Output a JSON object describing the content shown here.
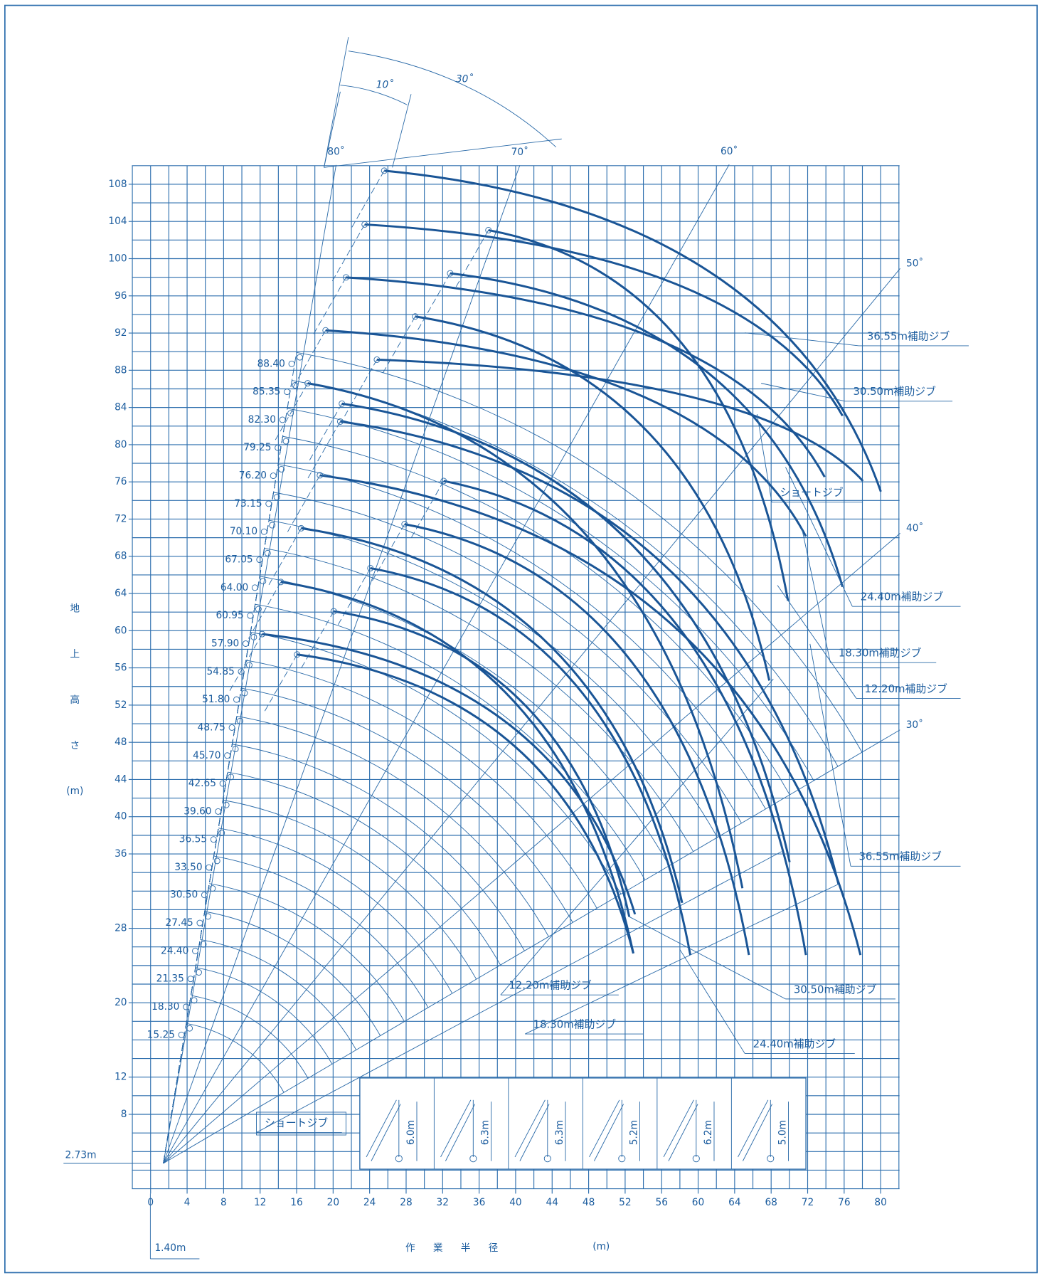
{
  "diagram": {
    "y_axis_title": [
      "地",
      "上",
      "高",
      "さ",
      "(m)"
    ],
    "x_axis_title": "作業半径",
    "x_axis_unit": "(m)",
    "xticks": [
      0,
      4,
      8,
      12,
      16,
      20,
      24,
      28,
      32,
      36,
      40,
      44,
      48,
      52,
      56,
      60,
      64,
      68,
      72,
      76,
      80
    ],
    "yticks": [
      8,
      12,
      20,
      28,
      36,
      40,
      44,
      48,
      52,
      56,
      60,
      64,
      68,
      72,
      76,
      80,
      84,
      88,
      92,
      96,
      100,
      104,
      108
    ],
    "pivot": {
      "x": 1.4,
      "y": 2.73,
      "x_label": "1.40m",
      "y_label": "2.73m"
    },
    "boom_lengths": [
      "15.25",
      "18.30",
      "21.35",
      "24.40",
      "27.45",
      "30.50",
      "33.50",
      "36.55",
      "39.60",
      "42.65",
      "45.70",
      "48.75",
      "51.80",
      "54.85",
      "57.90",
      "60.95",
      "64.00",
      "67.05",
      "70.10",
      "73.15",
      "76.20",
      "79.25",
      "82.30",
      "85.35",
      "88.40"
    ],
    "angle_lines": [
      {
        "angle": 80,
        "label": "80˚"
      },
      {
        "angle": 70,
        "label": "70˚"
      },
      {
        "angle": 60,
        "label": "60˚"
      },
      {
        "angle": 50,
        "label": "50˚"
      },
      {
        "angle": 40,
        "label": "40˚"
      },
      {
        "angle": 30,
        "label": "30˚"
      }
    ],
    "offset_labels": [
      "10˚",
      "30˚"
    ],
    "jib_labels": [
      "36.55m補助ジブ",
      "30.50m補助ジブ",
      "ショートジブ",
      "24.40m補助ジブ",
      "18.30m補助ジブ",
      "12.20m補助ジブ",
      "36.55m補助ジブ",
      "12.20m補助ジブ",
      "18.30m補助ジブ",
      "30.50m補助ジブ",
      "24.40m補助ジブ",
      "ショートジブ"
    ],
    "inset_heights": [
      "6.0m",
      "6.3m",
      "6.3m",
      "5.2m",
      "6.2m",
      "5.0m"
    ]
  }
}
